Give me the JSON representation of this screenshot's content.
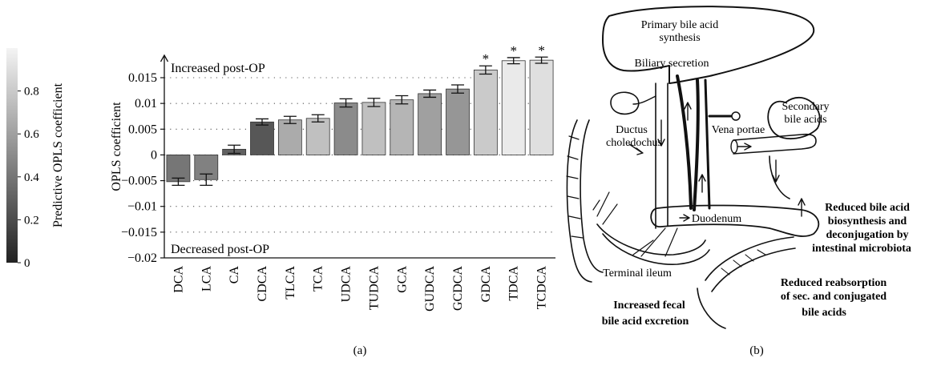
{
  "panel_a": {
    "label": "(a)",
    "colorbar": {
      "label": "Predictive OPLS coefficient",
      "ticks": [
        "0",
        "0.2",
        "0.4",
        "0.6",
        "0.8"
      ],
      "tick_values": [
        0,
        0.2,
        0.4,
        0.6,
        0.8
      ],
      "range": [
        0,
        1
      ],
      "color_low": "#222222",
      "color_high": "#f4f4f4"
    },
    "annotation_top": "Increased post-OP",
    "annotation_bottom": "Decreased post-OP",
    "significance_marker": "*",
    "y_ticks": [
      "0.015",
      "0.01",
      "0.005",
      "0",
      "−0.005",
      "−0.01",
      "−0.015",
      "−0.02"
    ],
    "y_tick_values": [
      0.015,
      0.01,
      0.005,
      0,
      -0.005,
      -0.01,
      -0.015,
      -0.02
    ]
  },
  "chart_data": {
    "type": "bar",
    "ylabel": "OPLS coefficient",
    "xlabel": "",
    "title": "",
    "ylim": [
      -0.02,
      0.019
    ],
    "grid": "horizontal dotted",
    "categories": [
      "DCA",
      "LCA",
      "CA",
      "CDCA",
      "TLCA",
      "TCA",
      "UDCA",
      "TUDCA",
      "GCA",
      "GUDCA",
      "GCDCA",
      "GDCA",
      "TDCA",
      "TCDCA"
    ],
    "values": [
      -0.0052,
      -0.0048,
      0.0011,
      0.0064,
      0.0068,
      0.0071,
      0.0101,
      0.0102,
      0.0107,
      0.0119,
      0.0128,
      0.0165,
      0.0183,
      0.0184
    ],
    "errors": [
      0.0007,
      0.0011,
      0.0008,
      0.0006,
      0.0007,
      0.0007,
      0.0008,
      0.0008,
      0.0008,
      0.0007,
      0.0008,
      0.0008,
      0.0006,
      0.0006
    ],
    "predictive_coefficient": [
      0.4,
      0.45,
      0.3,
      0.25,
      0.65,
      0.75,
      0.5,
      0.75,
      0.7,
      0.6,
      0.55,
      0.8,
      0.95,
      0.9
    ],
    "significant": [
      false,
      false,
      false,
      false,
      false,
      false,
      false,
      false,
      false,
      false,
      false,
      true,
      true,
      true
    ]
  },
  "panel_b": {
    "label": "(b)",
    "labels": {
      "primary_synthesis": [
        "Primary bile acid",
        "synthesis"
      ],
      "biliary_secretion": "Biliary secretion",
      "ductus": [
        "Ductus",
        "choledochus"
      ],
      "vena_portae": "Vena portae",
      "secondary": [
        "Secondary",
        "bile acids"
      ],
      "duodenum": "Duodenum",
      "terminal_ileum": "Terminal ileum",
      "reduced_biosynthesis": [
        "Reduced bile acid",
        "biosynthesis and",
        "deconjugation by",
        "intestinal microbiota"
      ],
      "reduced_reabsorption": [
        "Reduced reabsorption",
        "of sec. and conjugated",
        "bile acids"
      ],
      "increased_fecal": [
        "Increased fecal",
        "bile acid excretion"
      ]
    }
  }
}
